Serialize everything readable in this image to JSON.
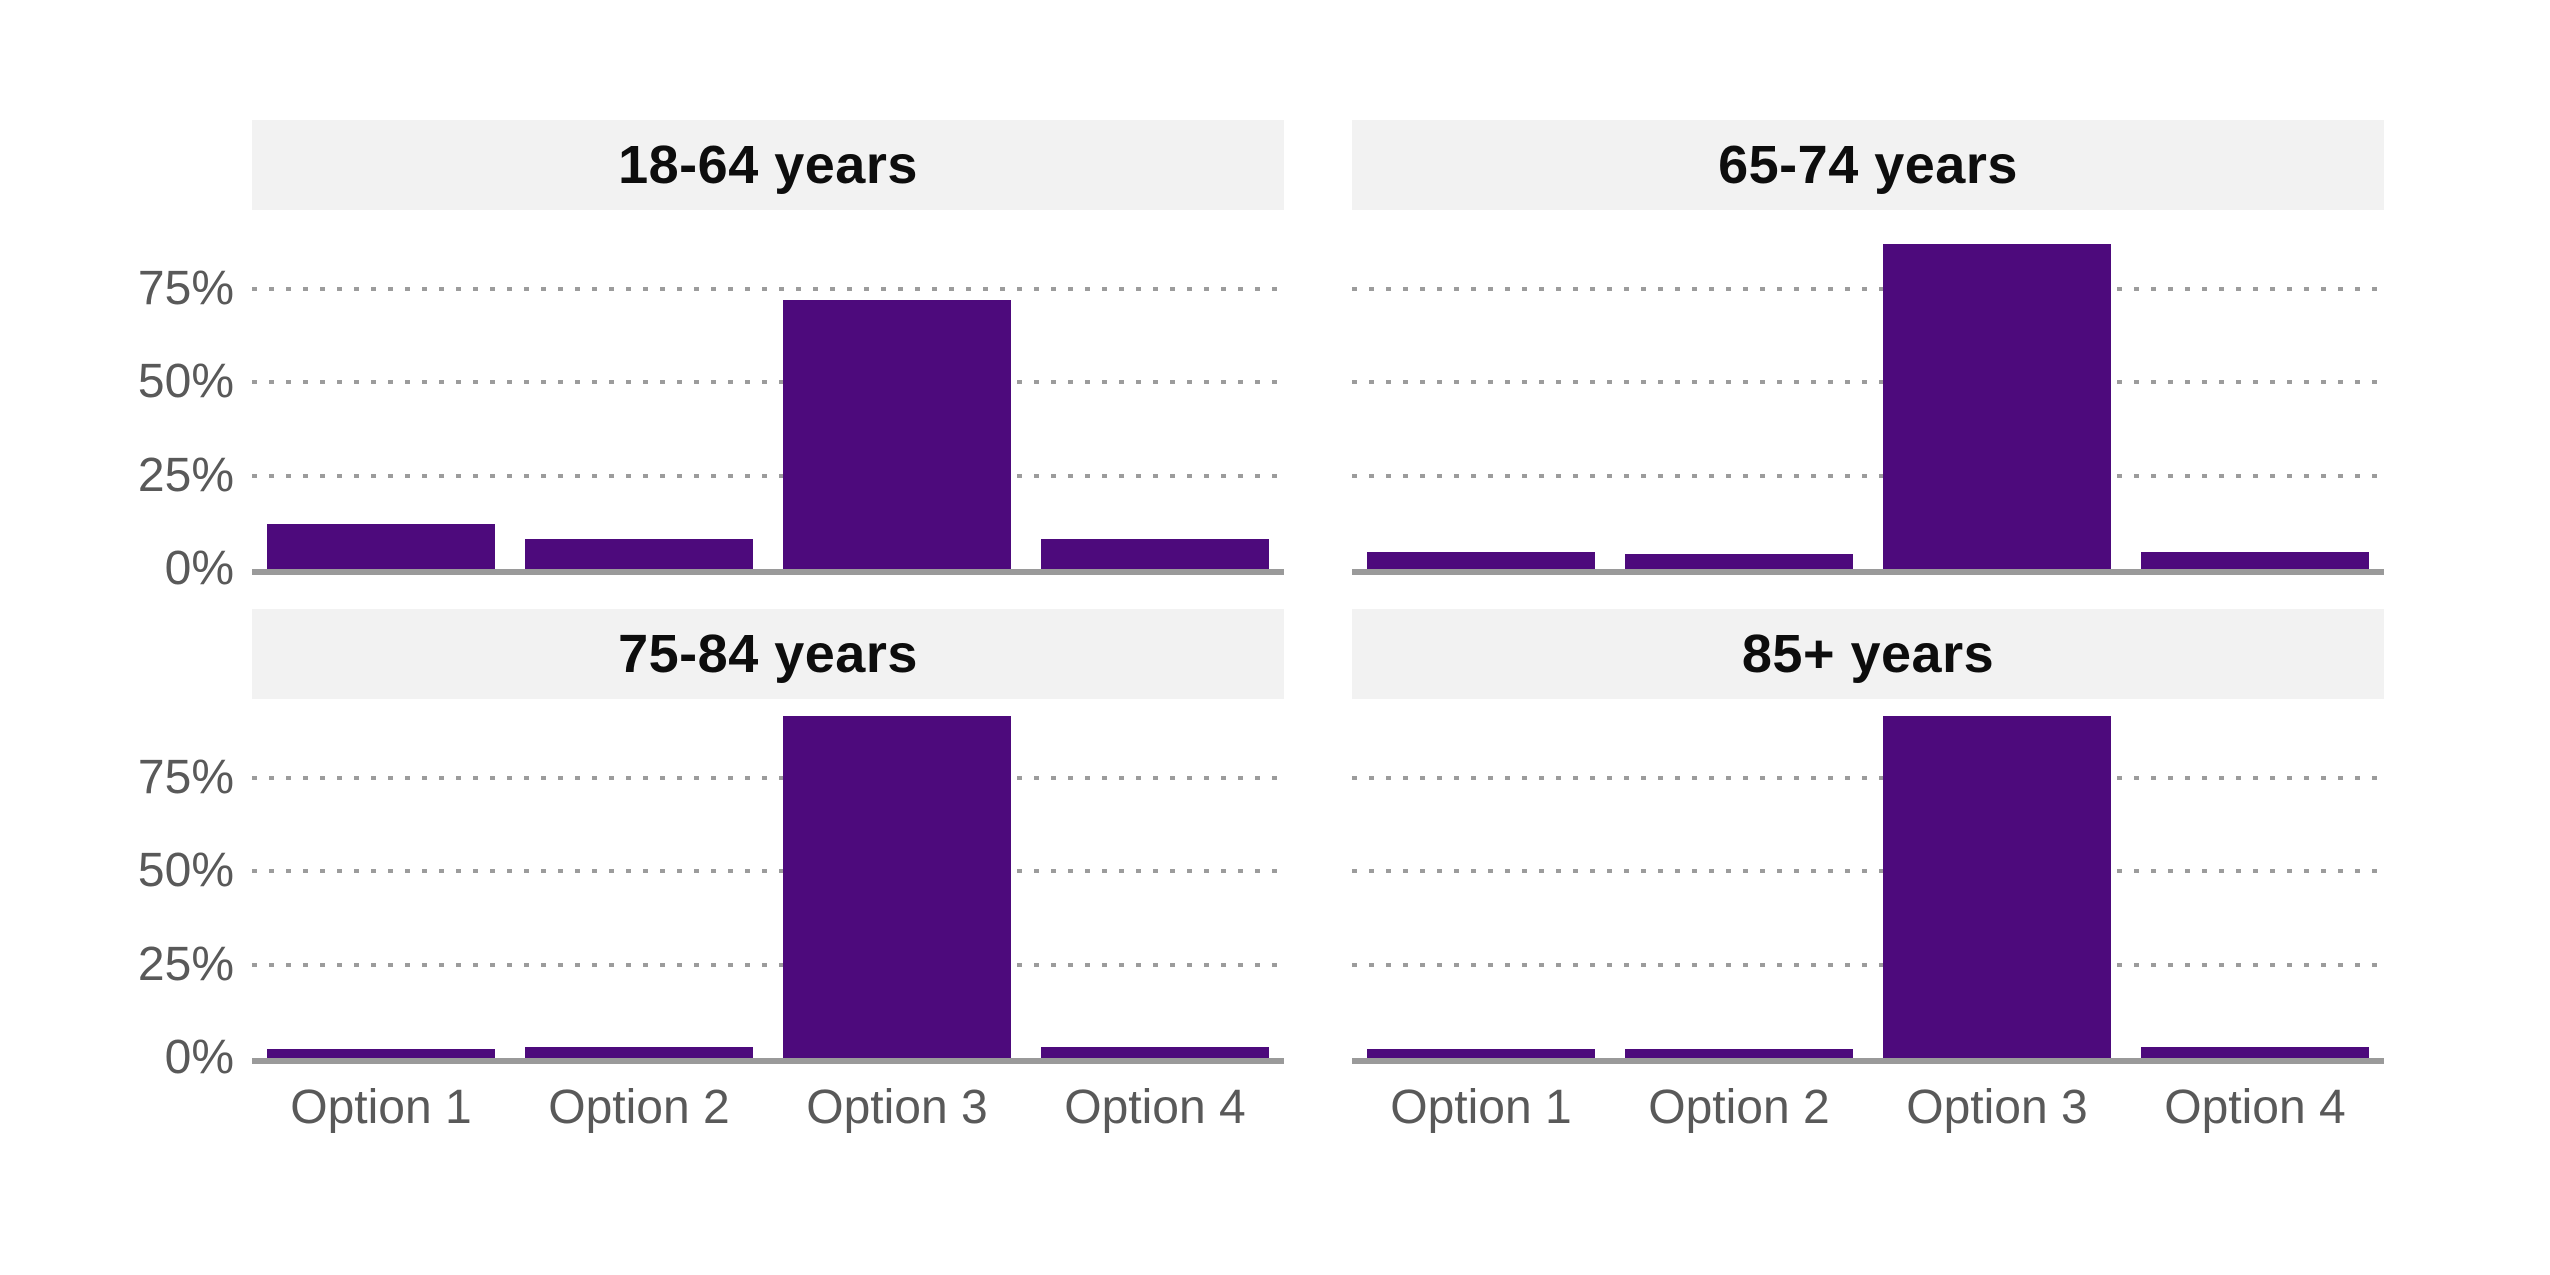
{
  "chart_data": {
    "type": "bar",
    "layout": "facet-grid-2x2-small-multiples",
    "categories": [
      "Option 1",
      "Option 2",
      "Option 3",
      "Option 4"
    ],
    "facets": [
      {
        "title": "18-64 years",
        "values": [
          12,
          8,
          72,
          8
        ]
      },
      {
        "title": "65-74 years",
        "values": [
          4.5,
          4,
          87,
          4.5
        ]
      },
      {
        "title": "75-84 years",
        "values": [
          2.5,
          3,
          91.5,
          3
        ]
      },
      {
        "title": "85+ years",
        "values": [
          2.5,
          2.5,
          91.5,
          3
        ]
      }
    ],
    "yticks": [
      {
        "label": "0%",
        "value": 0
      },
      {
        "label": "25%",
        "value": 25
      },
      {
        "label": "50%",
        "value": 50
      },
      {
        "label": "75%",
        "value": 75
      }
    ],
    "ylim": [
      0,
      100
    ],
    "grid": "horizontal dotted lines at 25/50/75, solid baseline at 0",
    "legend": "none",
    "y_axis_labels_on": "left column only",
    "x_axis_labels_on": "bottom row only"
  },
  "colors": {
    "bar": "#4d0a7c",
    "facet_band_background": "#f2f2f2",
    "facet_title_text": "#0d0d0d",
    "axis_text": "#595959",
    "gridline": "#9c9c9c",
    "axis_line": "#9a9a9a",
    "background": "#ffffff"
  }
}
